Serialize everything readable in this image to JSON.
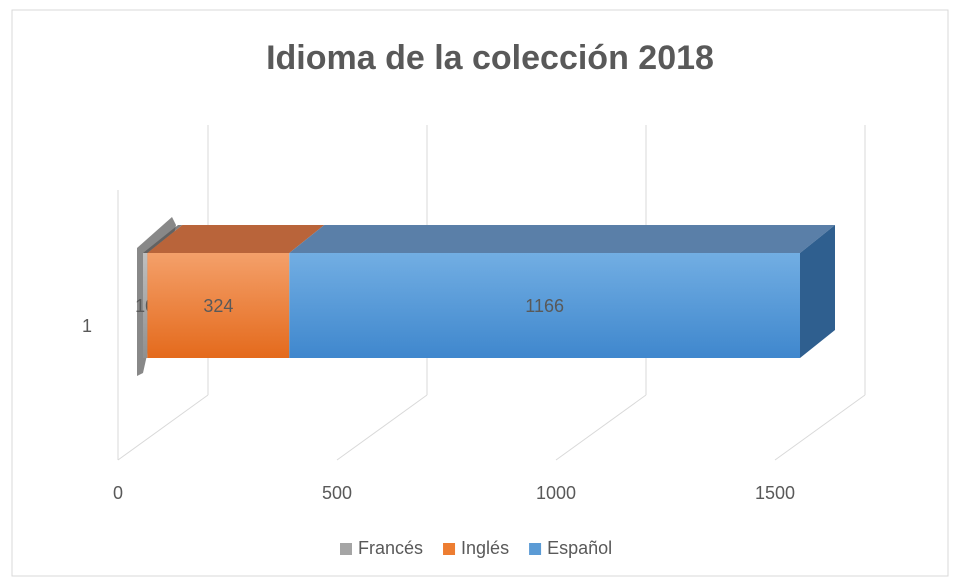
{
  "chart_data": {
    "type": "bar3d_stacked_horizontal",
    "title": "Idioma de la colección 2018",
    "categories": [
      "1"
    ],
    "series": [
      {
        "name": "Francés",
        "color": "#a5a5a5",
        "values": [
          10
        ]
      },
      {
        "name": "Inglés",
        "color": "#ed7d31",
        "values": [
          324
        ]
      },
      {
        "name": "Español",
        "color": "#5b9bd5",
        "values": [
          1166
        ]
      }
    ],
    "xlim": [
      0,
      1500
    ],
    "xticks": [
      0,
      500,
      1000,
      1500
    ],
    "grid": true,
    "legend": "bottom"
  }
}
